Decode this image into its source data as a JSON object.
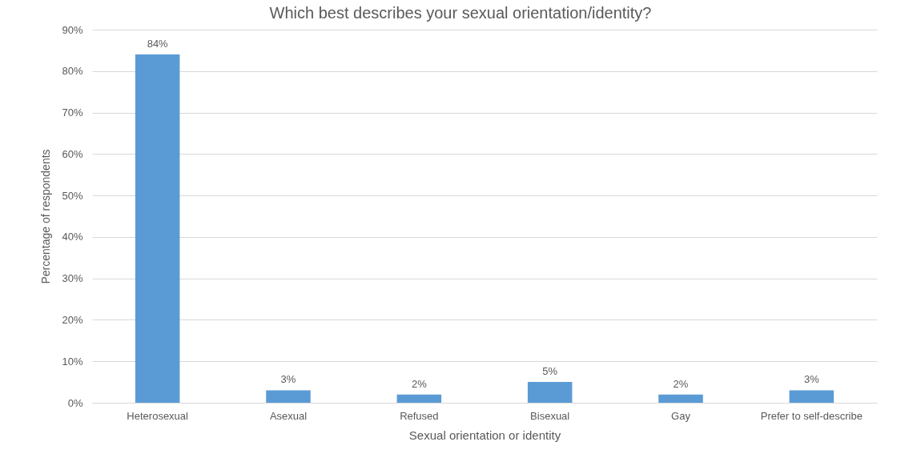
{
  "chart_data": {
    "type": "bar",
    "title": "Which best describes your sexual orientation/identity?",
    "xlabel": "Sexual orientation or identity",
    "ylabel": "Percentage of respondents",
    "categories": [
      "Heterosexual",
      "Asexual",
      "Refused",
      "Bisexual",
      "Gay",
      "Prefer to self-describe"
    ],
    "values": [
      84,
      3,
      2,
      5,
      2,
      3
    ],
    "value_labels": [
      "84%",
      "3%",
      "2%",
      "5%",
      "2%",
      "3%"
    ],
    "color": "#5b9bd5",
    "ylim": [
      0,
      90
    ],
    "yticks": [
      {
        "value": 0,
        "label": "0%"
      },
      {
        "value": 10,
        "label": "10%"
      },
      {
        "value": 20,
        "label": "20%"
      },
      {
        "value": 30,
        "label": "30%"
      },
      {
        "value": 40,
        "label": "40%"
      },
      {
        "value": 50,
        "label": "50%"
      },
      {
        "value": 60,
        "label": "60%"
      },
      {
        "value": 70,
        "label": "70%"
      },
      {
        "value": 80,
        "label": "80%"
      },
      {
        "value": 90,
        "label": "90%"
      }
    ],
    "grid": "y"
  }
}
